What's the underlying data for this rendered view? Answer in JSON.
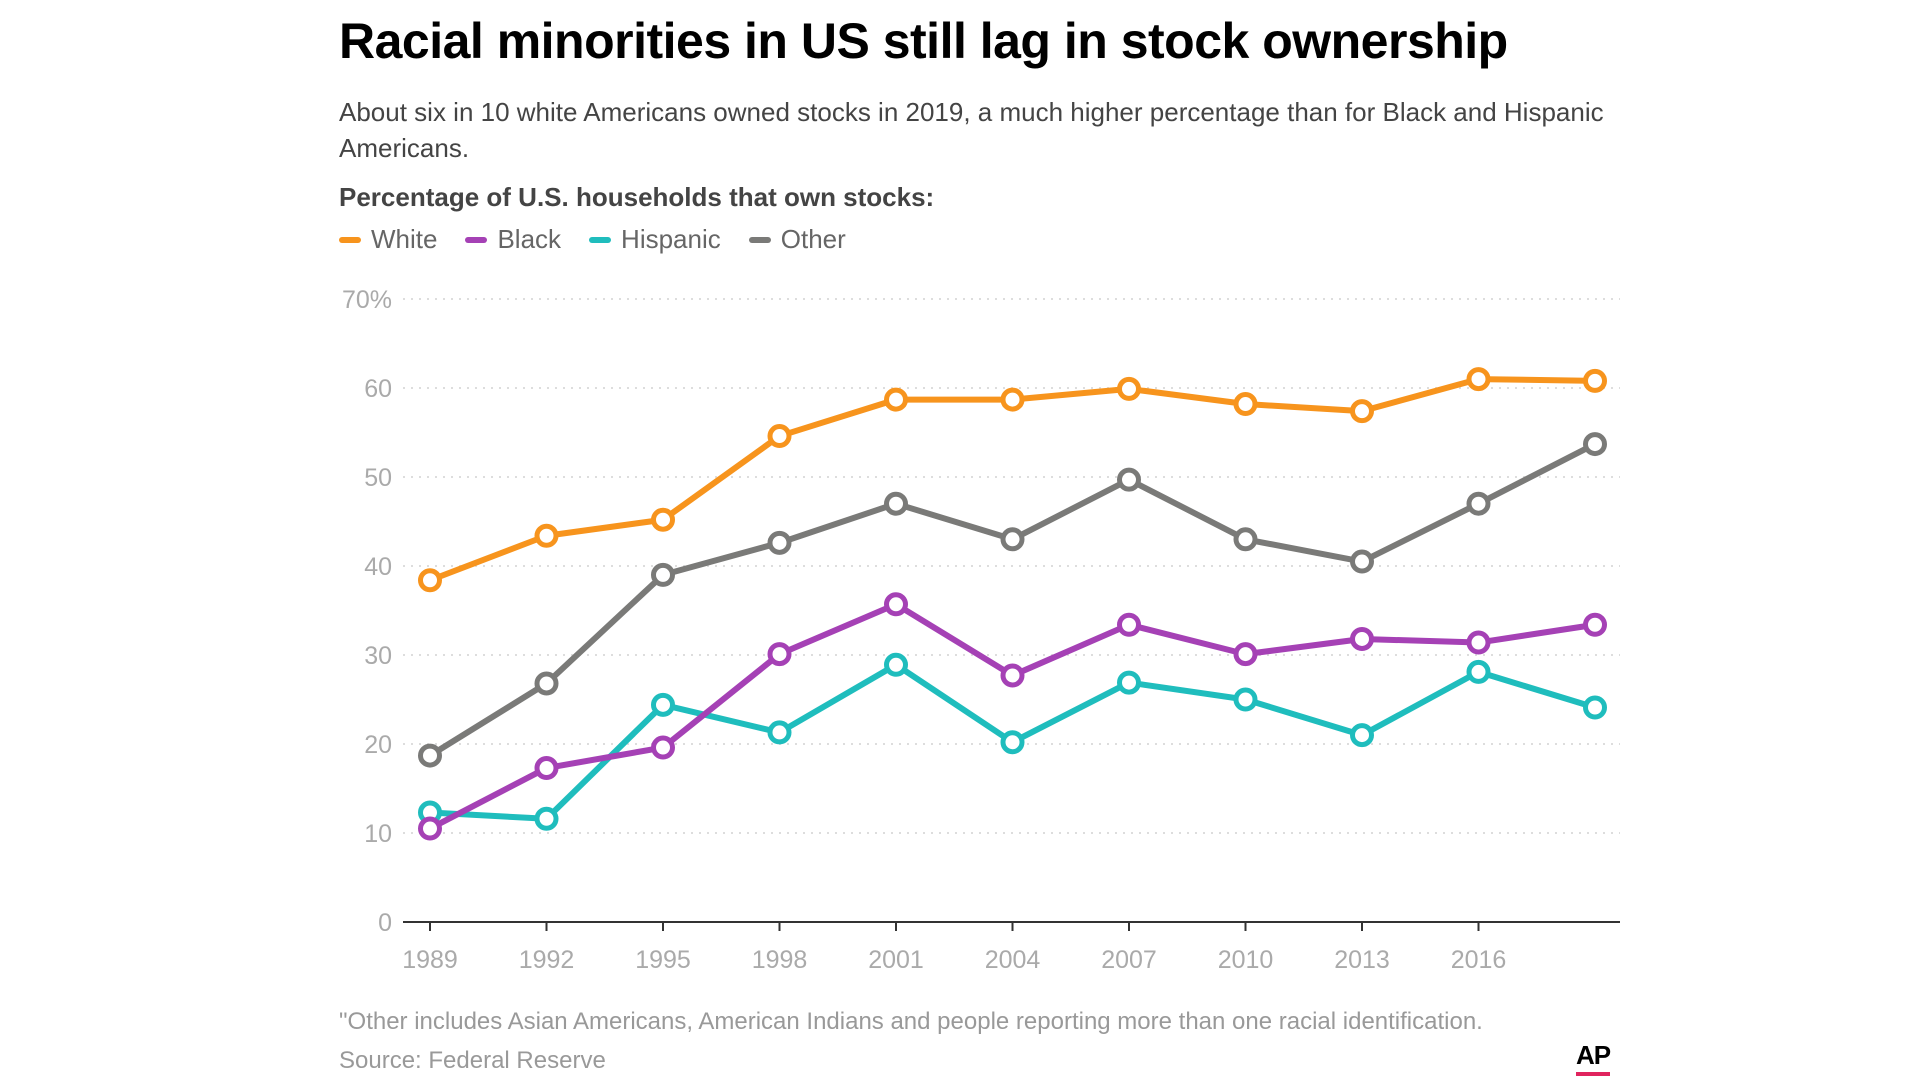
{
  "title": "Racial minorities in US still lag in stock ownership",
  "subtitle": "About six in 10 white Americans owned stocks in 2019, a much higher percentage than for Black and Hispanic Americans.",
  "chart_heading": "Percentage of U.S. households that own stocks:",
  "footnote": "\"Other  includes Asian Americans, American Indians and people reporting more than one racial identification.",
  "source": "Source:  Federal Reserve",
  "logo": "AP",
  "colors": {
    "white": "#f7941d",
    "black": "#a541b5",
    "hispanic": "#1fbdbd",
    "other": "#7a7a78",
    "grid": "#dddddd",
    "axis": "#333333",
    "tick": "#aaaaaa",
    "logo_accent": "#e0245e"
  },
  "chart_data": {
    "type": "line",
    "x": [
      1989,
      1992,
      1995,
      1998,
      2001,
      2004,
      2007,
      2010,
      2013,
      2016,
      2019
    ],
    "x_tick_labels": [
      "1989",
      "1992",
      "1995",
      "1998",
      "2001",
      "2004",
      "2007",
      "2010",
      "2013",
      "2016"
    ],
    "y_tick_labels": [
      "0",
      "10",
      "20",
      "30",
      "40",
      "50",
      "60",
      "70%"
    ],
    "y_ticks": [
      0,
      10,
      20,
      30,
      40,
      50,
      60,
      70
    ],
    "ylim": [
      0,
      70
    ],
    "xlim": [
      1989,
      2019
    ],
    "grid": true,
    "legend_position": "top-left",
    "series": [
      {
        "name": "White",
        "color_key": "white",
        "values": [
          38.4,
          43.4,
          45.2,
          54.6,
          58.7,
          58.7,
          59.9,
          58.2,
          57.4,
          61.0,
          60.8
        ]
      },
      {
        "name": "Black",
        "color_key": "black",
        "values": [
          10.5,
          17.3,
          19.6,
          30.1,
          35.7,
          27.7,
          33.4,
          30.1,
          31.8,
          31.4,
          33.4
        ]
      },
      {
        "name": "Hispanic",
        "color_key": "hispanic",
        "values": [
          12.3,
          11.6,
          24.4,
          21.3,
          28.9,
          20.2,
          26.9,
          25.0,
          21.0,
          28.1,
          24.1
        ]
      },
      {
        "name": "Other",
        "color_key": "other",
        "values": [
          18.7,
          26.8,
          39.0,
          42.6,
          47.0,
          43.0,
          49.7,
          43.0,
          40.5,
          47.0,
          53.7
        ]
      }
    ]
  }
}
